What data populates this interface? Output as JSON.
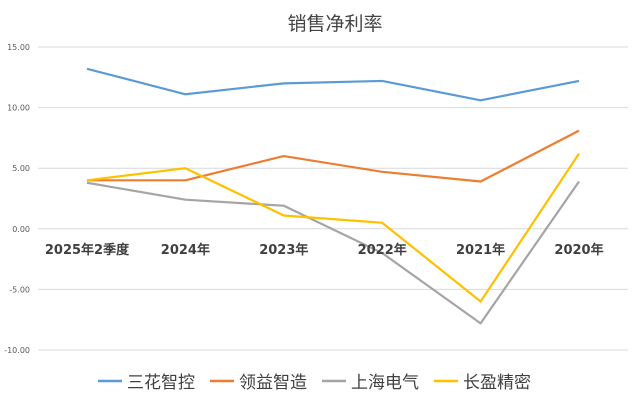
{
  "chart_data": {
    "type": "line",
    "title": "销售净利率",
    "xlabel": "",
    "ylabel": "",
    "categories": [
      "2025年2季度",
      "2024年",
      "2023年",
      "2022年",
      "2021年",
      "2020年"
    ],
    "ylim": [
      -10,
      15
    ],
    "yticks": [
      15,
      10,
      5,
      0,
      -5,
      -10
    ],
    "ytick_labels": [
      "15.00",
      "10.00",
      "5.00",
      "0.00",
      "-5.00",
      "-10.00"
    ],
    "grid": true,
    "legend_position": "bottom",
    "series": [
      {
        "name": "三花智控",
        "color": "#5B9BD5",
        "values": [
          13.2,
          11.1,
          12.0,
          12.2,
          10.6,
          12.2
        ]
      },
      {
        "name": "领益智造",
        "color": "#ED7D31",
        "values": [
          4.0,
          4.0,
          6.0,
          4.7,
          3.9,
          8.1
        ]
      },
      {
        "name": "上海电气",
        "color": "#A5A5A5",
        "values": [
          3.8,
          2.4,
          1.9,
          -2.0,
          -7.8,
          3.9
        ]
      },
      {
        "name": "长盈精密",
        "color": "#FFC000",
        "values": [
          4.0,
          5.0,
          1.1,
          0.5,
          -6.0,
          6.2
        ]
      }
    ]
  }
}
